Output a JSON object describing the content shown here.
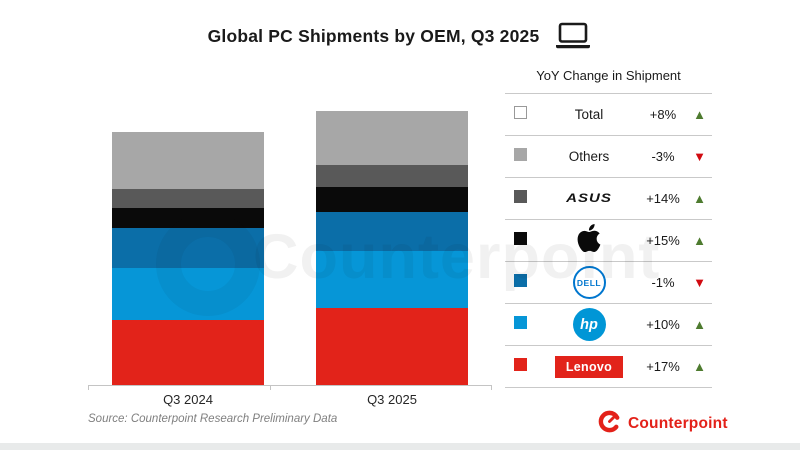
{
  "title": {
    "text": "Global PC Shipments by OEM, Q3 2025"
  },
  "chart_data": {
    "type": "bar",
    "stacked": true,
    "title": "Global PC Shipments by OEM, Q3 2025",
    "categories": [
      "Q3 2024",
      "Q3 2025"
    ],
    "stack_order": "bottom-to-top",
    "value_axis": "none shown on chart; values are relative stacked heights measured from the figure",
    "series": [
      {
        "name": "Lenovo",
        "color": "#e2231a",
        "values": [
          65,
          77
        ]
      },
      {
        "name": "HP",
        "color": "#0696d7",
        "values": [
          52,
          57
        ]
      },
      {
        "name": "Dell",
        "color": "#0b6ea8",
        "values": [
          40,
          39
        ]
      },
      {
        "name": "Apple",
        "color": "#0a0a0a",
        "values": [
          20,
          25
        ]
      },
      {
        "name": "ASUS",
        "color": "#595959",
        "values": [
          19,
          22
        ]
      },
      {
        "name": "Others",
        "color": "#a7a7a7",
        "values": [
          57,
          54
        ]
      }
    ],
    "totals_relative": [
      253,
      274
    ],
    "legend_position": "right"
  },
  "legend": {
    "header": "YoY Change in Shipment",
    "up_glyph": "▲",
    "down_glyph": "▼",
    "up_color": "#4e7b2f",
    "down_color": "#d10a11",
    "rows": [
      {
        "label": "Total",
        "swatch": "#ffffff",
        "swatch_border": "#999999",
        "change": "+8%",
        "direction": "up"
      },
      {
        "label": "Others",
        "swatch": "#a7a7a7",
        "change": "-3%",
        "direction": "down"
      },
      {
        "label": "ASUS",
        "swatch": "#595959",
        "change": "+14%",
        "direction": "up",
        "logo": "asus",
        "logo_text": "ASUS"
      },
      {
        "label": "Apple",
        "swatch": "#0a0a0a",
        "change": "+15%",
        "direction": "up",
        "logo": "apple"
      },
      {
        "label": "Dell",
        "swatch": "#0b6ea8",
        "change": "-1%",
        "direction": "down",
        "logo": "dell",
        "logo_text": "DELL"
      },
      {
        "label": "HP",
        "swatch": "#0696d7",
        "change": "+10%",
        "direction": "up",
        "logo": "hp",
        "logo_text": "hp"
      },
      {
        "label": "Lenovo",
        "swatch": "#e2231a",
        "change": "+17%",
        "direction": "up",
        "logo": "lenovo",
        "logo_text": "Lenovo"
      }
    ]
  },
  "source": {
    "text": "Source: Counterpoint Research Preliminary Data"
  },
  "branding": {
    "name": "Counterpoint",
    "color": "#e32119"
  },
  "watermark": {
    "text": "Counterpoint"
  },
  "icons": {
    "title_icon": "laptop-icon",
    "brand_icon": "counterpoint-mark-icon"
  }
}
